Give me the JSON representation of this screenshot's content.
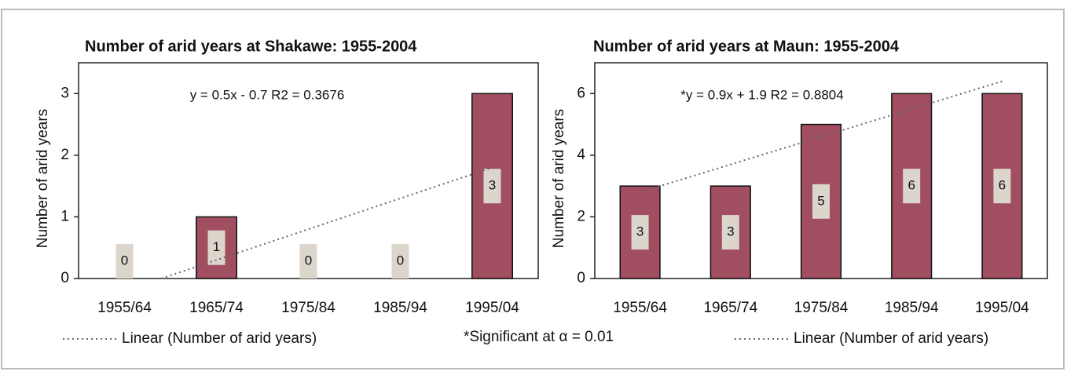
{
  "chart_data": [
    {
      "type": "bar",
      "title": "Number of arid years at Shakawe: 1955-2004",
      "y_label": "Number of arid years",
      "categories": [
        "1955/64",
        "1965/74",
        "1975/84",
        "1985/94",
        "1995/04"
      ],
      "values": [
        0,
        1,
        0,
        0,
        3
      ],
      "color": "#a14e60",
      "ylim": [
        0,
        3.5
      ],
      "yticks": [
        0,
        1,
        2,
        3
      ],
      "annotation": "y = 0.5x - 0.7 R2 = 0.3676",
      "trendline": {
        "name": "Linear (Number of arid years)",
        "slope": 0.5,
        "intercept": -0.7
      }
    },
    {
      "type": "bar",
      "title": "Number of arid years at Maun: 1955-2004",
      "y_label": "Number of arid years",
      "categories": [
        "1955/64",
        "1965/74",
        "1975/84",
        "1985/94",
        "1995/04"
      ],
      "values": [
        3,
        3,
        5,
        6,
        6
      ],
      "color": "#a14e60",
      "ylim": [
        0,
        7
      ],
      "yticks": [
        0,
        2,
        4,
        6
      ],
      "annotation": "*y = 0.9x + 1.9 R2 = 0.8804",
      "note": "*Significant at α = 0.01",
      "trendline": {
        "name": "Linear (Number of arid years)",
        "slope": 0.9,
        "intercept": 1.9
      }
    }
  ]
}
